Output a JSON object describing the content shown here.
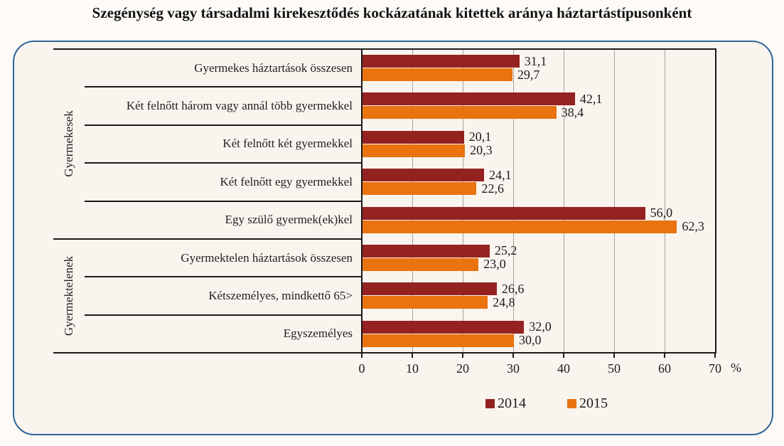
{
  "chart_data": {
    "type": "bar",
    "orientation": "horizontal",
    "title": "Szegénység vagy társadalmi kirekesztődés kockázatának kitettek aránya háztartástípusonként",
    "xlabel": "%",
    "xlim": [
      0,
      70
    ],
    "x_ticks": [
      "0",
      "10",
      "20",
      "30",
      "40",
      "50",
      "60",
      "70"
    ],
    "x_axis_suffix": "%",
    "grid": true,
    "legend_position": "bottom",
    "groups": [
      {
        "label": "Gyermekesek",
        "span": 5
      },
      {
        "label": "Gyermektelenek",
        "span": 3
      }
    ],
    "categories": [
      "Gyermekes háztartások összesen",
      "Két felnőtt három vagy annál több gyermekkel",
      "Két felnőtt két gyermekkel",
      "Két felnőtt egy gyermekkel",
      "Egy szülő gyermek(ek)kel",
      "Gyermektelen háztartások összesen",
      "Kétszemélyes, mindkettő 65>",
      "Egyszemélyes"
    ],
    "series": [
      {
        "name": "2014",
        "color": "#942221",
        "values": [
          31.1,
          42.1,
          20.1,
          24.1,
          56.0,
          25.2,
          26.6,
          32.0
        ],
        "labels": [
          "31,1",
          "42,1",
          "20,1",
          "24,1",
          "56,0",
          "25,2",
          "26,6",
          "32,0"
        ]
      },
      {
        "name": "2015",
        "color": "#e8730f",
        "values": [
          29.7,
          38.4,
          20.3,
          22.6,
          62.3,
          23.0,
          24.8,
          30.0
        ],
        "labels": [
          "29,7",
          "38,4",
          "20,3",
          "22,6",
          "62,3",
          "23,0",
          "24,8",
          "30,0"
        ]
      }
    ],
    "accent_colors": {
      "frame_border": "#2e6699",
      "series_2014": "#942221",
      "series_2015": "#e8730f"
    }
  }
}
